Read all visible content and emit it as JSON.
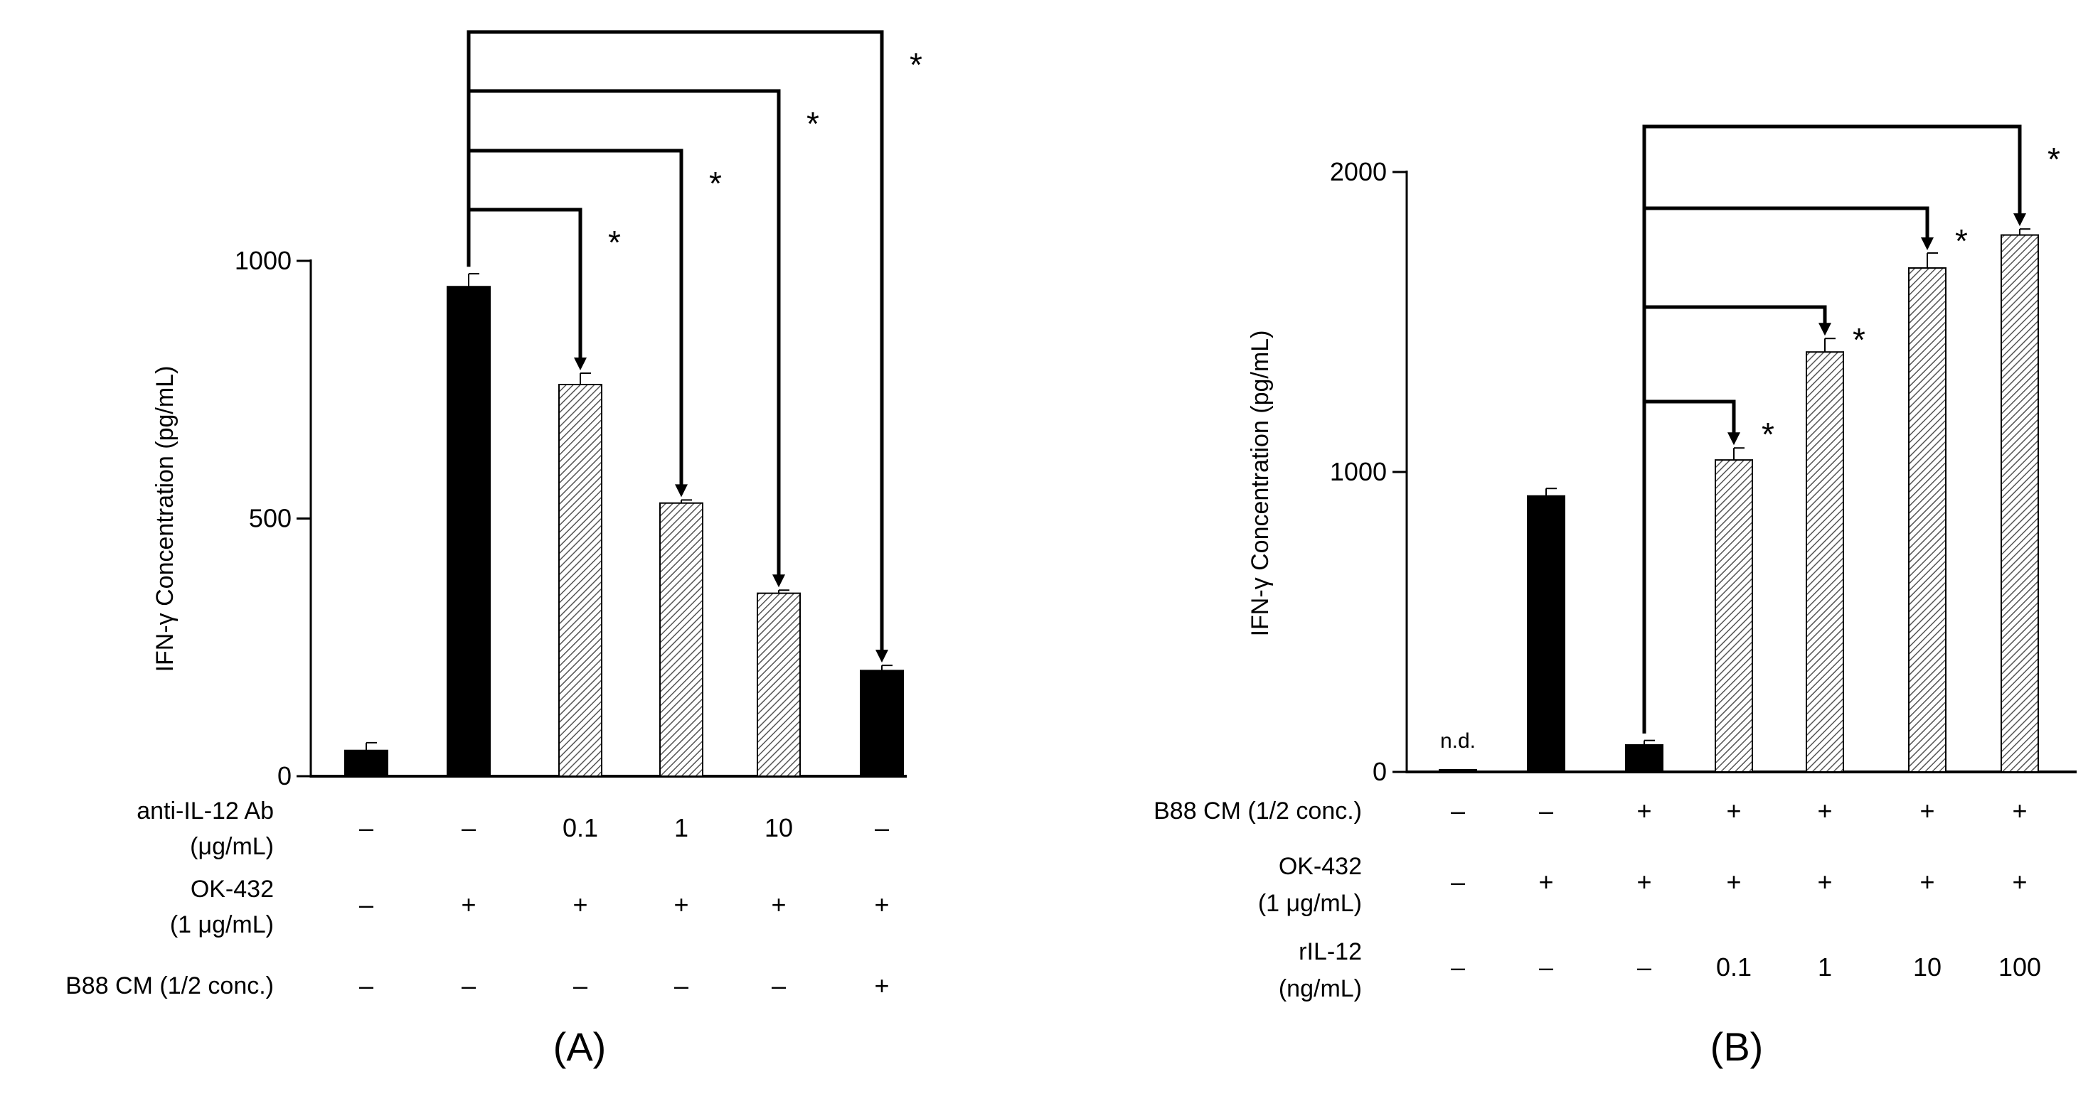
{
  "chart_data": [
    {
      "panel_label": "(A)",
      "type": "bar",
      "ylabel": "IFN-γ  Concentration (pg/mL)",
      "ylim": [
        0,
        1000
      ],
      "yticks": [
        0,
        500,
        1000
      ],
      "ytick_labels": [
        "0",
        "500",
        "1000"
      ],
      "values": [
        50,
        950,
        760,
        530,
        355,
        205
      ],
      "errors": [
        15,
        25,
        22,
        6,
        6,
        10
      ],
      "fills": [
        "black",
        "black",
        "hatched",
        "hatched",
        "hatched",
        "black"
      ],
      "bar_notes": [
        "",
        "",
        "",
        "",
        "",
        ""
      ],
      "condition_rows": [
        {
          "label": [
            "anti-IL-12 Ab",
            "(μg/mL)"
          ],
          "values": [
            "–",
            "–",
            "0.1",
            "1",
            "10",
            "–"
          ]
        },
        {
          "label": [
            "OK-432",
            "(1 μg/mL)"
          ],
          "values": [
            "–",
            "+",
            "+",
            "+",
            "+",
            "+"
          ]
        },
        {
          "label": [
            "B88 CM (1/2 conc.)"
          ],
          "values": [
            "–",
            "–",
            "–",
            "–",
            "–",
            "+"
          ]
        }
      ],
      "comparisons": [
        {
          "from": 1,
          "to": 2,
          "mark": "*"
        },
        {
          "from": 1,
          "to": 3,
          "mark": "*"
        },
        {
          "from": 1,
          "to": 4,
          "mark": "*"
        },
        {
          "from": 1,
          "to": 5,
          "mark": "*"
        }
      ]
    },
    {
      "panel_label": "(B)",
      "type": "bar",
      "ylabel": "IFN-γ  Concentration (pg/mL)",
      "ylim": [
        0,
        2000
      ],
      "yticks": [
        0,
        1000,
        2000
      ],
      "ytick_labels": [
        "0",
        "1000",
        "2000"
      ],
      "values": [
        0,
        920,
        90,
        1040,
        1400,
        1680,
        1790
      ],
      "errors": [
        0,
        25,
        15,
        40,
        45,
        50,
        20
      ],
      "fills": [
        "black",
        "black",
        "black",
        "hatched",
        "hatched",
        "hatched",
        "hatched"
      ],
      "bar_notes": [
        "n.d.",
        "",
        "",
        "",
        "",
        "",
        ""
      ],
      "condition_rows": [
        {
          "label": [
            "B88 CM (1/2 conc.)"
          ],
          "values": [
            "–",
            "–",
            "+",
            "+",
            "+",
            "+",
            "+"
          ]
        },
        {
          "label": [
            "OK-432",
            "(1 μg/mL)"
          ],
          "values": [
            "–",
            "+",
            "+",
            "+",
            "+",
            "+",
            "+"
          ]
        },
        {
          "label": [
            "rIL-12",
            "(ng/mL)"
          ],
          "values": [
            "–",
            "–",
            "–",
            "0.1",
            "1",
            "10",
            "100"
          ]
        }
      ],
      "comparisons": [
        {
          "from": 2,
          "to": 3,
          "mark": "*"
        },
        {
          "from": 2,
          "to": 4,
          "mark": "*"
        },
        {
          "from": 2,
          "to": 5,
          "mark": "*"
        },
        {
          "from": 2,
          "to": 6,
          "mark": "*"
        }
      ]
    }
  ]
}
